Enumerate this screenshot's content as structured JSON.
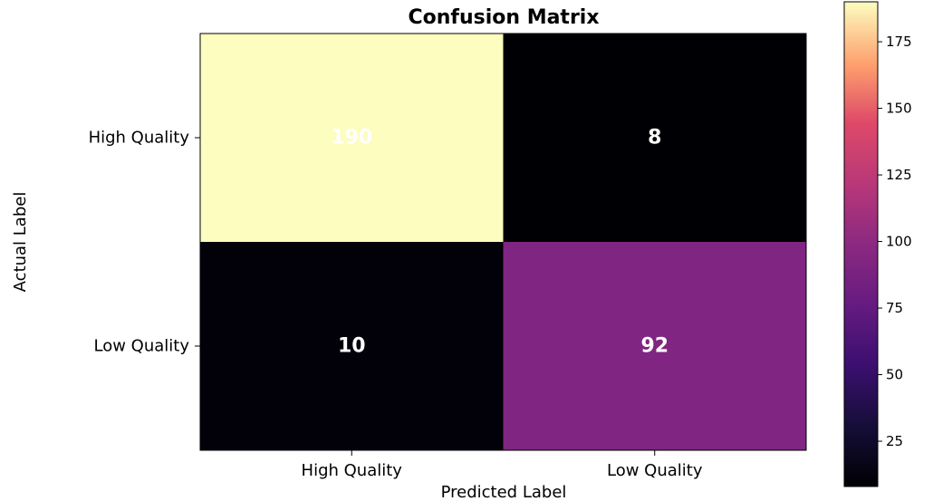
{
  "chart_data": {
    "type": "heatmap",
    "title": "Confusion Matrix",
    "xlabel": "Predicted Label",
    "ylabel": "Actual Label",
    "x_categories": [
      "High Quality",
      "Low Quality"
    ],
    "y_categories": [
      "High Quality",
      "Low Quality"
    ],
    "values": [
      [
        190,
        8
      ],
      [
        10,
        92
      ]
    ],
    "colormap": "magma",
    "colorbar": {
      "range": [
        8,
        190
      ],
      "ticks": [
        25,
        50,
        75,
        100,
        125,
        150,
        175
      ],
      "tick_labels": [
        "25",
        "50",
        "75",
        "100",
        "125",
        "150",
        "175"
      ]
    },
    "grid": false
  }
}
